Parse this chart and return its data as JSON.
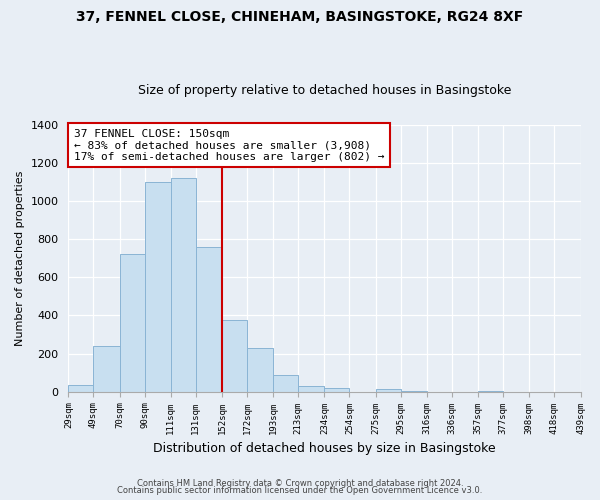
{
  "title1": "37, FENNEL CLOSE, CHINEHAM, BASINGSTOKE, RG24 8XF",
  "title2": "Size of property relative to detached houses in Basingstoke",
  "xlabel": "Distribution of detached houses by size in Basingstoke",
  "ylabel": "Number of detached properties",
  "bar_color": "#c8dff0",
  "bar_edge_color": "#8ab4d4",
  "bins": [
    29,
    49,
    70,
    90,
    111,
    131,
    152,
    172,
    193,
    213,
    234,
    254,
    275,
    295,
    316,
    336,
    357,
    377,
    398,
    418,
    439
  ],
  "bin_labels": [
    "29sqm",
    "49sqm",
    "70sqm",
    "90sqm",
    "111sqm",
    "131sqm",
    "152sqm",
    "172sqm",
    "193sqm",
    "213sqm",
    "234sqm",
    "254sqm",
    "275sqm",
    "295sqm",
    "316sqm",
    "336sqm",
    "357sqm",
    "377sqm",
    "398sqm",
    "418sqm",
    "439sqm"
  ],
  "counts": [
    35,
    240,
    720,
    1100,
    1120,
    760,
    375,
    230,
    90,
    30,
    20,
    0,
    15,
    5,
    0,
    0,
    5,
    0,
    0,
    0
  ],
  "property_line_x": 152,
  "property_line_color": "#cc0000",
  "annotation_line1": "37 FENNEL CLOSE: 150sqm",
  "annotation_line2": "← 83% of detached houses are smaller (3,908)",
  "annotation_line3": "17% of semi-detached houses are larger (802) →",
  "annotation_box_color": "#ffffff",
  "annotation_box_edge": "#cc0000",
  "ylim": [
    0,
    1400
  ],
  "yticks": [
    0,
    200,
    400,
    600,
    800,
    1000,
    1200,
    1400
  ],
  "footer1": "Contains HM Land Registry data © Crown copyright and database right 2024.",
  "footer2": "Contains public sector information licensed under the Open Government Licence v3.0.",
  "bg_color": "#e8eef5",
  "grid_color": "#ffffff",
  "title_fontsize": 10,
  "subtitle_fontsize": 9
}
